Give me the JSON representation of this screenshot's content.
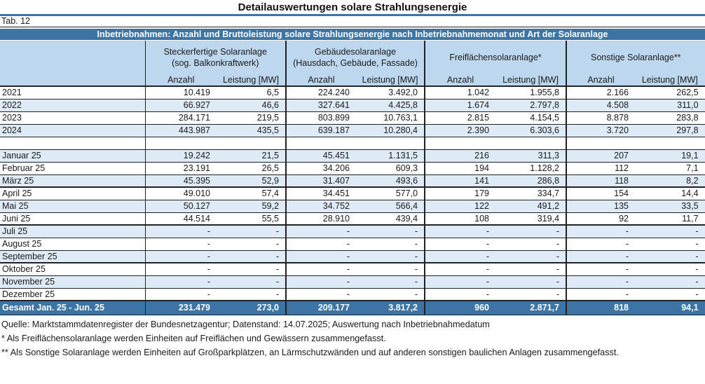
{
  "title": "Detailauswertungen solare Strahlungsenergie",
  "tab_label": "Tab. 12",
  "table": {
    "banner": "Inbetriebnahmen: Anzahl und Bruttoleistung solare Strahlungsenergie nach Inbetriebnahmemonat und Art der Solaranlage",
    "groups": [
      {
        "name_lines": [
          "Steckerfertige Solaranlage",
          "(sog. Balkonkraftwerk)"
        ]
      },
      {
        "name_lines": [
          "Gebäudesolaranlage",
          "(Hausdach, Gebäude, Fassade)"
        ]
      },
      {
        "name_lines": [
          "Freiflächensolaranlage*"
        ]
      },
      {
        "name_lines": [
          "Sonstige Solaranlage**"
        ]
      }
    ],
    "subheaders": [
      "Anzahl",
      "Leistung [MW]"
    ],
    "rows": [
      {
        "label": "2021",
        "values": [
          "10.419",
          "6,5",
          "224.240",
          "3.492,0",
          "1.042",
          "1.955,8",
          "2.166",
          "262,5"
        ]
      },
      {
        "label": "2022",
        "values": [
          "66.927",
          "46,6",
          "327.641",
          "4.425,8",
          "1.674",
          "2.797,8",
          "4.508",
          "311,0"
        ]
      },
      {
        "label": "2023",
        "values": [
          "284.171",
          "219,5",
          "803.899",
          "10.763,1",
          "2.815",
          "4.154,5",
          "8.878",
          "283,8"
        ]
      },
      {
        "label": "2024",
        "values": [
          "443.987",
          "435,5",
          "639.187",
          "10.280,4",
          "2.390",
          "6.303,6",
          "3.720",
          "297,8"
        ]
      },
      {
        "label": "",
        "values": [
          "",
          "",
          "",
          "",
          "",
          "",
          "",
          ""
        ],
        "spacer": true
      },
      {
        "label": "Januar 25",
        "values": [
          "19.242",
          "21,5",
          "45.451",
          "1.131,5",
          "216",
          "311,3",
          "207",
          "19,1"
        ]
      },
      {
        "label": "Februar 25",
        "values": [
          "23.191",
          "26,5",
          "34.206",
          "609,3",
          "194",
          "1.128,2",
          "112",
          "7,1"
        ]
      },
      {
        "label": "März 25",
        "values": [
          "45.395",
          "52,9",
          "31.407",
          "493,6",
          "141",
          "286,8",
          "118",
          "8,2"
        ],
        "quarter_end": true
      },
      {
        "label": "April 25",
        "values": [
          "49.010",
          "57,4",
          "34.451",
          "577,0",
          "179",
          "334,7",
          "154",
          "14,4"
        ]
      },
      {
        "label": "Mai 25",
        "values": [
          "50.127",
          "59,2",
          "34.752",
          "566,4",
          "122",
          "491,2",
          "135",
          "33,5"
        ]
      },
      {
        "label": "Juni 25",
        "values": [
          "44.514",
          "55,5",
          "28.910",
          "439,4",
          "108",
          "319,4",
          "92",
          "11,7"
        ],
        "quarter_end": true
      },
      {
        "label": "Juli 25",
        "values": [
          "-",
          "-",
          "-",
          "-",
          "-",
          "-",
          "-",
          "-"
        ]
      },
      {
        "label": "August 25",
        "values": [
          "-",
          "-",
          "-",
          "-",
          "-",
          "-",
          "-",
          "-"
        ]
      },
      {
        "label": "September 25",
        "values": [
          "-",
          "-",
          "-",
          "-",
          "-",
          "-",
          "-",
          "-"
        ],
        "quarter_end": true
      },
      {
        "label": "Oktober 25",
        "values": [
          "-",
          "-",
          "-",
          "-",
          "-",
          "-",
          "-",
          "-"
        ]
      },
      {
        "label": "November 25",
        "values": [
          "-",
          "-",
          "-",
          "-",
          "-",
          "-",
          "-",
          "-"
        ]
      },
      {
        "label": "Dezember 25",
        "values": [
          "-",
          "-",
          "-",
          "-",
          "-",
          "-",
          "-",
          "-"
        ],
        "quarter_end": true
      },
      {
        "label": "Gesamt Jan. 25 - Jun. 25",
        "values": [
          "231.479",
          "273,0",
          "209.177",
          "3.817,2",
          "960",
          "2.871,7",
          "818",
          "94,1"
        ],
        "total": true
      }
    ]
  },
  "footer": {
    "source": "Quelle: Marktstammdatenregister der Bundesnetzagentur; Datenstand: 14.07.2025; Auswertung nach Inbetriebnahmedatum",
    "footnote1": "* Als Freiflächensolaranlage werden Einheiten auf Freiflächen und Gewässern zusammengefasst.",
    "footnote2": "** Als Sonstige Solaranlage werden Einheiten auf Großparkplätzen, an Lärmschutzwänden und auf anderen sonstigen baulichen Anlagen zusammengefasst."
  },
  "colors": {
    "accent_blue": "#3d74a6",
    "header_blue": "#bdd7ee",
    "stripe_blue": "#deeaf6"
  }
}
